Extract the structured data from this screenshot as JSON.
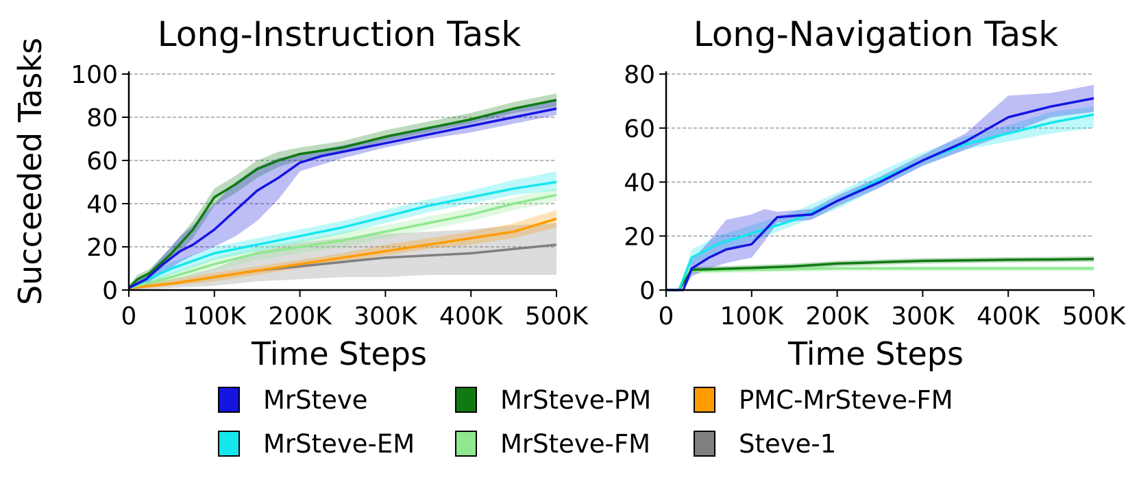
{
  "figure": {
    "ylabel": "Succeeded Tasks"
  },
  "legend": [
    {
      "name": "MrSteve",
      "color": "#1515e0"
    },
    {
      "name": "MrSteve-PM",
      "color": "#0f7a12"
    },
    {
      "name": "PMC-MrSteve-FM",
      "color": "#ff9c00"
    },
    {
      "name": "MrSteve-EM",
      "color": "#16e6ee"
    },
    {
      "name": "MrSteve-FM",
      "color": "#8fe88f"
    },
    {
      "name": "Steve-1",
      "color": "#808080"
    }
  ],
  "chart_data": [
    {
      "type": "line",
      "title": "Long-Instruction Task",
      "xlabel": "Time Steps",
      "ylabel": "Succeeded Tasks",
      "xlim": [
        0,
        500000
      ],
      "ylim": [
        0,
        100
      ],
      "xticks": [
        "0",
        "100K",
        "200K",
        "300K",
        "400K",
        "500K"
      ],
      "yticks": [
        "0",
        "20",
        "40",
        "60",
        "80",
        "100"
      ],
      "grid": "horizontal dashed",
      "series": [
        {
          "name": "Steve-1",
          "color": "#808080",
          "x": [
            0,
            50000,
            100000,
            150000,
            200000,
            250000,
            300000,
            350000,
            400000,
            450000,
            500000
          ],
          "y": [
            1,
            3,
            6,
            9,
            11,
            13,
            15,
            16,
            17,
            19,
            21
          ],
          "lower": [
            0,
            1,
            2,
            4,
            5,
            6,
            6,
            7,
            7,
            7,
            7
          ],
          "upper": [
            2,
            5,
            10,
            18,
            22,
            24,
            26,
            27,
            28,
            30,
            31
          ]
        },
        {
          "name": "PMC-MrSteve-FM",
          "color": "#ff9c00",
          "x": [
            0,
            50000,
            100000,
            150000,
            200000,
            250000,
            300000,
            350000,
            400000,
            450000,
            500000
          ],
          "y": [
            1,
            3,
            6,
            9,
            12,
            15,
            18,
            21,
            24,
            27,
            33
          ],
          "lower": [
            0,
            2,
            4,
            7,
            10,
            13,
            16,
            19,
            21,
            24,
            29
          ],
          "upper": [
            2,
            5,
            8,
            11,
            14,
            17,
            21,
            24,
            27,
            31,
            37
          ]
        },
        {
          "name": "MrSteve-FM",
          "color": "#8fe88f",
          "x": [
            0,
            50000,
            100000,
            150000,
            200000,
            250000,
            300000,
            350000,
            400000,
            450000,
            500000
          ],
          "y": [
            1,
            6,
            12,
            17,
            20,
            23,
            27,
            31,
            35,
            40,
            44
          ],
          "lower": [
            0,
            4,
            9,
            14,
            17,
            20,
            24,
            28,
            32,
            37,
            41
          ],
          "upper": [
            2,
            8,
            15,
            20,
            23,
            27,
            30,
            34,
            38,
            43,
            47
          ]
        },
        {
          "name": "MrSteve-EM",
          "color": "#16e6ee",
          "x": [
            0,
            50000,
            100000,
            150000,
            200000,
            250000,
            300000,
            350000,
            400000,
            450000,
            500000
          ],
          "y": [
            1,
            10,
            17,
            21,
            25,
            29,
            34,
            39,
            43,
            47,
            50
          ],
          "lower": [
            0,
            7,
            14,
            18,
            22,
            26,
            31,
            36,
            40,
            44,
            46
          ],
          "upper": [
            2,
            13,
            20,
            24,
            28,
            32,
            37,
            42,
            46,
            51,
            55
          ]
        },
        {
          "name": "MrSteve-PM",
          "color": "#0f7a12",
          "x": [
            0,
            10000,
            25000,
            50000,
            75000,
            100000,
            125000,
            150000,
            175000,
            200000,
            250000,
            300000,
            350000,
            400000,
            450000,
            500000
          ],
          "y": [
            1,
            5,
            8,
            17,
            28,
            43,
            49,
            56,
            60,
            63,
            66,
            71,
            75,
            79,
            84,
            88
          ],
          "lower": [
            0,
            3,
            6,
            14,
            24,
            39,
            45,
            52,
            57,
            60,
            64,
            69,
            73,
            77,
            82,
            85
          ],
          "upper": [
            2,
            7,
            10,
            20,
            32,
            47,
            53,
            60,
            64,
            66,
            69,
            74,
            78,
            82,
            87,
            91
          ]
        },
        {
          "name": "MrSteve",
          "color": "#1515e0",
          "x": [
            0,
            20000,
            40000,
            60000,
            75000,
            100000,
            125000,
            150000,
            175000,
            200000,
            225000,
            250000,
            300000,
            350000,
            400000,
            450000,
            500000
          ],
          "y": [
            1,
            5,
            12,
            18,
            21,
            28,
            37,
            46,
            52,
            59,
            62,
            64,
            68,
            72,
            76,
            80,
            84
          ],
          "lower": [
            0,
            3,
            8,
            13,
            16,
            20,
            25,
            32,
            42,
            55,
            58,
            61,
            66,
            70,
            73,
            77,
            81
          ],
          "upper": [
            2,
            7,
            16,
            25,
            30,
            40,
            50,
            57,
            61,
            63,
            65,
            67,
            71,
            75,
            79,
            84,
            88
          ]
        }
      ]
    },
    {
      "type": "line",
      "title": "Long-Navigation Task",
      "xlabel": "Time Steps",
      "ylabel": "",
      "xlim": [
        0,
        500000
      ],
      "ylim": [
        0,
        80
      ],
      "xticks": [
        "0",
        "100K",
        "200K",
        "300K",
        "400K",
        "500K"
      ],
      "yticks": [
        "0",
        "20",
        "40",
        "60",
        "80"
      ],
      "grid": "horizontal dashed",
      "series": [
        {
          "name": "MrSteve-FM",
          "color": "#8fe88f",
          "x": [
            0,
            15000,
            25000,
            100000,
            200000,
            300000,
            400000,
            500000
          ],
          "y": [
            0,
            0,
            7,
            7.5,
            8,
            8,
            8,
            8
          ],
          "lower": [
            0,
            0,
            6,
            6.5,
            7,
            7,
            7,
            7
          ],
          "upper": [
            0,
            0,
            8,
            8.5,
            9,
            9,
            9,
            9
          ]
        },
        {
          "name": "MrSteve-PM",
          "color": "#0f7a12",
          "x": [
            0,
            15000,
            30000,
            100000,
            150000,
            200000,
            250000,
            300000,
            350000,
            400000,
            450000,
            500000
          ],
          "y": [
            0,
            0,
            7.5,
            8.2,
            8.8,
            9.8,
            10.3,
            10.8,
            11,
            11.2,
            11.3,
            11.5
          ],
          "lower": [
            0,
            0,
            6.5,
            7.2,
            7.8,
            8.8,
            9.3,
            9.8,
            10,
            10.2,
            10.3,
            10.5
          ],
          "upper": [
            0,
            0,
            8.5,
            9.2,
            9.8,
            10.8,
            11.3,
            11.8,
            12,
            12.2,
            12.3,
            12.5
          ]
        },
        {
          "name": "MrSteve-EM",
          "color": "#16e6ee",
          "x": [
            0,
            15000,
            30000,
            60000,
            100000,
            150000,
            200000,
            250000,
            300000,
            350000,
            400000,
            450000,
            500000
          ],
          "y": [
            0,
            0,
            12,
            17,
            21,
            26,
            33,
            41,
            48,
            54,
            58,
            62,
            65
          ],
          "lower": [
            0,
            0,
            9,
            14,
            18,
            24,
            30,
            38,
            46,
            52,
            55,
            58,
            60
          ],
          "upper": [
            0,
            0,
            15,
            20,
            24,
            29,
            36,
            44,
            51,
            57,
            61,
            66,
            68
          ]
        },
        {
          "name": "MrSteve",
          "color": "#1515e0",
          "x": [
            0,
            20000,
            30000,
            50000,
            70000,
            100000,
            115000,
            130000,
            170000,
            200000,
            250000,
            300000,
            350000,
            400000,
            450000,
            500000
          ],
          "y": [
            0,
            0,
            8,
            12,
            15,
            17,
            22,
            27,
            28,
            33,
            40,
            48,
            55,
            64,
            68,
            71
          ],
          "lower": [
            0,
            0,
            5,
            8,
            10,
            12,
            18,
            25,
            26,
            31,
            38,
            46,
            52,
            58,
            64,
            66
          ],
          "upper": [
            0,
            0,
            11,
            18,
            26,
            28,
            30,
            29,
            30,
            35,
            42,
            50,
            58,
            72,
            73,
            76
          ]
        }
      ]
    }
  ]
}
